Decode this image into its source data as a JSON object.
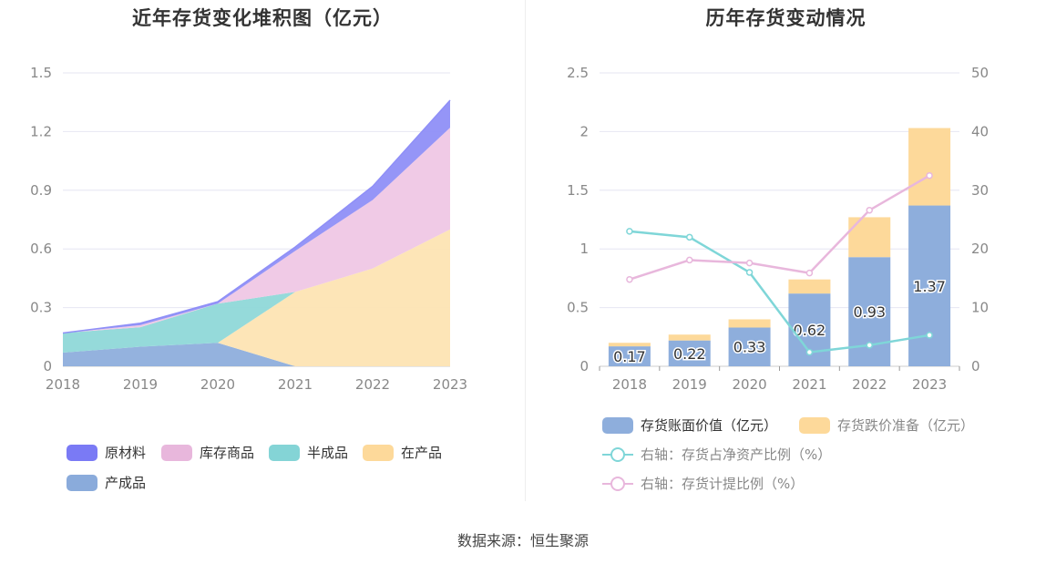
{
  "left": {
    "title": "近年存货变化堆积图（亿元）",
    "chart_data": {
      "type": "area",
      "stacked": true,
      "categories": [
        "2018",
        "2019",
        "2020",
        "2021",
        "2022",
        "2023"
      ],
      "ylim": [
        0,
        1.5
      ],
      "yticks": [
        "0",
        "0.3",
        "0.6",
        "0.9",
        "1.2",
        "1.5"
      ],
      "series": [
        {
          "name": "产成品",
          "color": "#8eaedc",
          "values": [
            0.07,
            0.1,
            0.12,
            0.0,
            0.0,
            0.0
          ]
        },
        {
          "name": "在产品",
          "color": "#fde4b3",
          "values": [
            0.0,
            0.0,
            0.0,
            0.38,
            0.5,
            0.7
          ]
        },
        {
          "name": "半成品",
          "color": "#8fd8d8",
          "values": [
            0.1,
            0.1,
            0.2,
            0.0,
            0.0,
            0.0
          ]
        },
        {
          "name": "库存商品",
          "color": "#efc7e5",
          "values": [
            0.0,
            0.01,
            0.0,
            0.21,
            0.35,
            0.52
          ]
        },
        {
          "name": "原材料",
          "color": "#8f8ff7",
          "values": [
            0.0,
            0.01,
            0.01,
            0.02,
            0.07,
            0.14
          ]
        }
      ]
    },
    "legend": [
      {
        "label": "原材料",
        "color": "#7a7af5"
      },
      {
        "label": "库存商品",
        "color": "#e8b7dc"
      },
      {
        "label": "半成品",
        "color": "#84d4d6"
      },
      {
        "label": "在产品",
        "color": "#fdd99a"
      },
      {
        "label": "产成品",
        "color": "#8aabdb"
      }
    ]
  },
  "right": {
    "title": "历年存货变动情况",
    "chart_data": {
      "type": "bar+line",
      "categories": [
        "2018",
        "2019",
        "2020",
        "2021",
        "2022",
        "2023"
      ],
      "ylim_left": [
        0,
        2.5
      ],
      "yticks_left": [
        "0",
        "0.5",
        "1",
        "1.5",
        "2",
        "2.5"
      ],
      "ylim_right": [
        0,
        50
      ],
      "yticks_right": [
        "0",
        "10",
        "20",
        "30",
        "40",
        "50"
      ],
      "bars": [
        {
          "name": "存货账面价值（亿元）",
          "color": "#8eaedc",
          "values": [
            0.17,
            0.22,
            0.33,
            0.62,
            0.93,
            1.37
          ],
          "labels": [
            "0.17",
            "0.22",
            "0.33",
            "0.62",
            "0.93",
            "1.37"
          ]
        },
        {
          "name": "存货跌价准备（亿元）",
          "color": "#fdd99a",
          "values": [
            0.03,
            0.05,
            0.07,
            0.12,
            0.34,
            0.66
          ]
        }
      ],
      "lines": [
        {
          "name": "右轴：存货占净资产比例（%）",
          "color": "#7fd6d8",
          "values": [
            23.0,
            22.0,
            16.0,
            2.4,
            3.6,
            5.3
          ]
        },
        {
          "name": "右轴：存货计提比例（%）",
          "color": "#e8b7dc",
          "values": [
            14.8,
            18.1,
            17.6,
            15.9,
            26.6,
            32.5
          ]
        }
      ]
    }
  },
  "source": "数据来源：恒生聚源"
}
